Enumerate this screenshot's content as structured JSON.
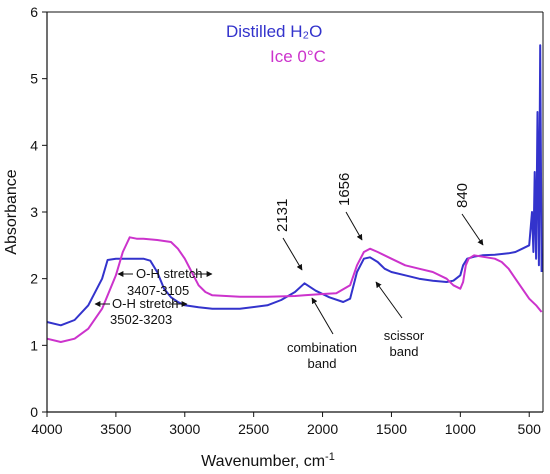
{
  "chart_data": {
    "type": "line",
    "xlabel": "Wavenumber, cm",
    "xlabel_sup": "-1",
    "ylabel": "Absorbance",
    "xlim": [
      4000,
      400
    ],
    "ylim": [
      0,
      6
    ],
    "x_ticks": [
      4000,
      3500,
      3000,
      2500,
      2000,
      1500,
      1000,
      500
    ],
    "y_ticks": [
      0,
      1,
      2,
      3,
      4,
      5,
      6
    ],
    "grid": false,
    "legend_position": "top-right",
    "series": [
      {
        "name": "Distilled H₂O",
        "color": "#3333cc",
        "points": [
          [
            4000,
            1.35
          ],
          [
            3900,
            1.3
          ],
          [
            3800,
            1.38
          ],
          [
            3700,
            1.6
          ],
          [
            3600,
            2.0
          ],
          [
            3560,
            2.28
          ],
          [
            3500,
            2.3
          ],
          [
            3400,
            2.3
          ],
          [
            3300,
            2.3
          ],
          [
            3250,
            2.27
          ],
          [
            3200,
            2.1
          ],
          [
            3150,
            1.85
          ],
          [
            3100,
            1.72
          ],
          [
            3050,
            1.65
          ],
          [
            3000,
            1.6
          ],
          [
            2900,
            1.57
          ],
          [
            2800,
            1.55
          ],
          [
            2600,
            1.55
          ],
          [
            2400,
            1.6
          ],
          [
            2300,
            1.68
          ],
          [
            2200,
            1.8
          ],
          [
            2131,
            1.93
          ],
          [
            2050,
            1.82
          ],
          [
            1950,
            1.72
          ],
          [
            1850,
            1.65
          ],
          [
            1800,
            1.7
          ],
          [
            1750,
            2.1
          ],
          [
            1700,
            2.3
          ],
          [
            1656,
            2.32
          ],
          [
            1600,
            2.25
          ],
          [
            1550,
            2.15
          ],
          [
            1500,
            2.1
          ],
          [
            1400,
            2.05
          ],
          [
            1300,
            2.0
          ],
          [
            1200,
            1.97
          ],
          [
            1100,
            1.95
          ],
          [
            1050,
            1.97
          ],
          [
            1000,
            2.05
          ],
          [
            980,
            2.2
          ],
          [
            950,
            2.3
          ],
          [
            900,
            2.33
          ],
          [
            840,
            2.35
          ],
          [
            750,
            2.36
          ],
          [
            650,
            2.38
          ],
          [
            600,
            2.4
          ],
          [
            550,
            2.45
          ],
          [
            500,
            2.5
          ],
          [
            480,
            3.0
          ],
          [
            470,
            2.4
          ],
          [
            460,
            3.6
          ],
          [
            450,
            2.3
          ],
          [
            440,
            4.5
          ],
          [
            430,
            2.2
          ],
          [
            420,
            5.5
          ],
          [
            410,
            2.1
          ]
        ]
      },
      {
        "name": "Ice 0°C",
        "color": "#cc33cc",
        "points": [
          [
            4000,
            1.1
          ],
          [
            3900,
            1.05
          ],
          [
            3800,
            1.1
          ],
          [
            3700,
            1.25
          ],
          [
            3600,
            1.55
          ],
          [
            3500,
            2.05
          ],
          [
            3450,
            2.4
          ],
          [
            3400,
            2.62
          ],
          [
            3350,
            2.6
          ],
          [
            3300,
            2.6
          ],
          [
            3200,
            2.58
          ],
          [
            3100,
            2.55
          ],
          [
            3050,
            2.45
          ],
          [
            3000,
            2.3
          ],
          [
            2950,
            2.1
          ],
          [
            2900,
            1.9
          ],
          [
            2850,
            1.8
          ],
          [
            2800,
            1.75
          ],
          [
            2600,
            1.73
          ],
          [
            2400,
            1.73
          ],
          [
            2200,
            1.74
          ],
          [
            2131,
            1.75
          ],
          [
            2000,
            1.77
          ],
          [
            1900,
            1.78
          ],
          [
            1800,
            1.9
          ],
          [
            1750,
            2.2
          ],
          [
            1700,
            2.4
          ],
          [
            1656,
            2.45
          ],
          [
            1600,
            2.4
          ],
          [
            1500,
            2.3
          ],
          [
            1400,
            2.2
          ],
          [
            1300,
            2.15
          ],
          [
            1200,
            2.1
          ],
          [
            1100,
            2.0
          ],
          [
            1050,
            1.9
          ],
          [
            1000,
            1.85
          ],
          [
            980,
            1.95
          ],
          [
            960,
            2.2
          ],
          [
            940,
            2.3
          ],
          [
            900,
            2.35
          ],
          [
            840,
            2.33
          ],
          [
            750,
            2.3
          ],
          [
            700,
            2.25
          ],
          [
            650,
            2.15
          ],
          [
            600,
            2.0
          ],
          [
            550,
            1.85
          ],
          [
            500,
            1.7
          ],
          [
            450,
            1.6
          ],
          [
            410,
            1.5
          ]
        ]
      }
    ],
    "annotations": [
      {
        "text": "2131",
        "x": 2131
      },
      {
        "text": "1656",
        "x": 1656
      },
      {
        "text": "840",
        "x": 840
      },
      {
        "text": "O-H stretch",
        "sub": "3407-3105"
      },
      {
        "text": "O-H stretch",
        "sub": "3502-3203"
      },
      {
        "text": "combination",
        "sub": "band"
      },
      {
        "text": "scissor",
        "sub": "band"
      }
    ]
  }
}
